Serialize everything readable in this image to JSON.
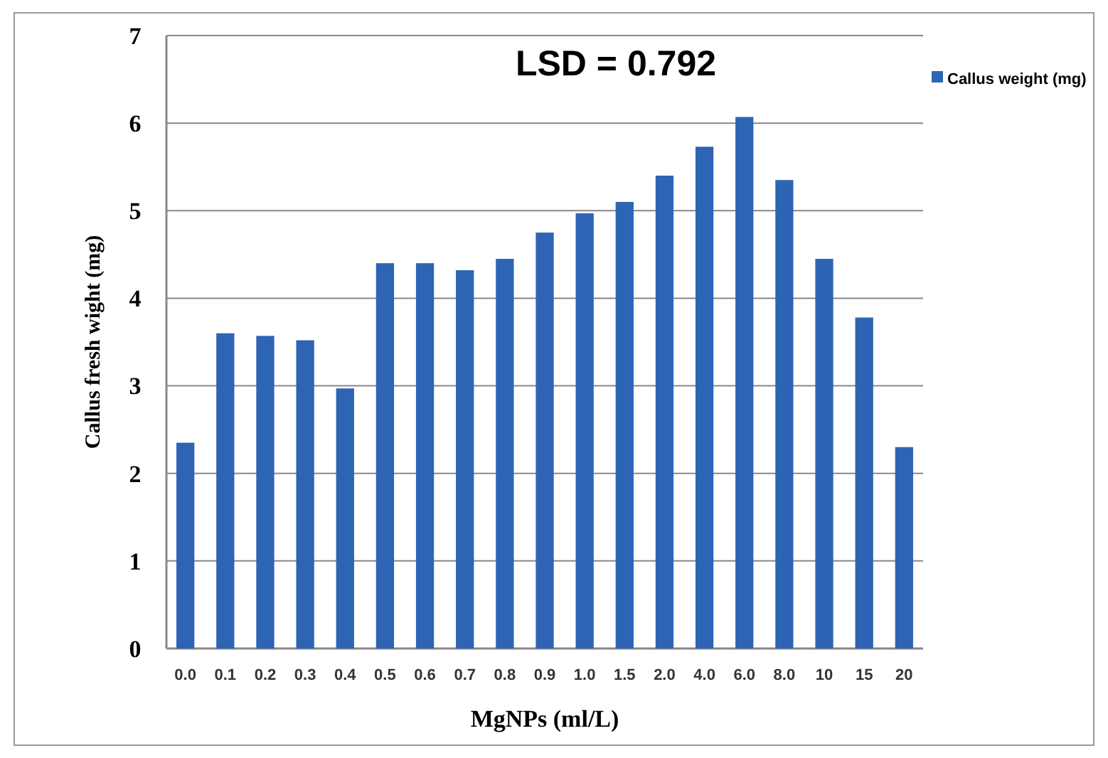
{
  "chart_data": {
    "type": "bar",
    "xlabel": "MgNPs (ml/L)",
    "ylabel": "Callus fresh wight (mg)",
    "annotations": [
      "LSD = 0.792"
    ],
    "categories": [
      "0.0",
      "0.1",
      "0.2",
      "0.3",
      "0.4",
      "0.5",
      "0.6",
      "0.7",
      "0.8",
      "0.9",
      "1.0",
      "1.5",
      "2.0",
      "4.0",
      "6.0",
      "8.0",
      "10",
      "15",
      "20"
    ],
    "series": [
      {
        "name": "Callus weight (mg)",
        "color": "#2e64b4",
        "values": [
          2.35,
          3.6,
          3.57,
          3.52,
          2.97,
          4.4,
          4.4,
          4.32,
          4.45,
          4.75,
          4.97,
          5.1,
          5.4,
          5.73,
          6.07,
          5.35,
          4.45,
          3.78,
          2.3
        ]
      }
    ],
    "ylim": [
      0,
      7
    ],
    "yticks": [
      0,
      1,
      2,
      3,
      4,
      5,
      6,
      7
    ],
    "grid": "y",
    "legend": "top right"
  }
}
